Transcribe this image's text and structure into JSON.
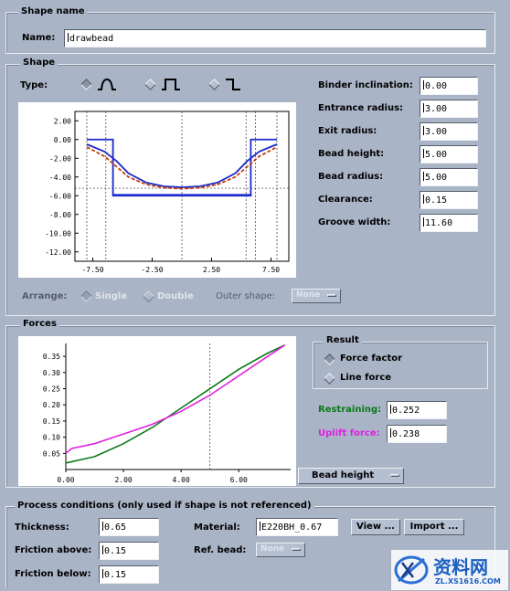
{
  "shape_name_group": {
    "title": "Shape name",
    "name_label": "Name:",
    "name_value": "drawbead"
  },
  "shape_group": {
    "title": "Shape",
    "type_label": "Type:",
    "type_options": [
      "round-bump-icon",
      "square-bump-icon",
      "step-icon"
    ],
    "selected_type": 0,
    "params": [
      {
        "label": "Binder inclination:",
        "value": "0.00"
      },
      {
        "label": "Entrance radius:",
        "value": "3.00"
      },
      {
        "label": "Exit radius:",
        "value": "3.00"
      },
      {
        "label": "Bead height:",
        "value": "5.00"
      },
      {
        "label": "Bead radius:",
        "value": "5.00"
      },
      {
        "label": "Clearance:",
        "value": "0.15"
      },
      {
        "label": "Groove width:",
        "value": "11.60"
      }
    ],
    "arrange_label": "Arrange:",
    "arrange_single": "Single",
    "arrange_double": "Double",
    "outer_shape_label": "Outer shape:",
    "outer_shape_value": "None"
  },
  "forces_group": {
    "title": "Forces",
    "result_title": "Result",
    "result_options": [
      "Force factor",
      "Line force"
    ],
    "selected_result": 0,
    "restraining_label": "Restraining:",
    "restraining_value": "0.252",
    "uplift_label": "Uplift force:",
    "uplift_value": "0.238",
    "xaxis_select": "Bead height",
    "colors": {
      "restraining": "#0a7a1a",
      "uplift": "#e020e0"
    }
  },
  "process_group": {
    "title": "Process conditions (only used if shape is not referenced)",
    "thickness_label": "Thickness:",
    "thickness_value": "0.65",
    "friction_above_label": "Friction above:",
    "friction_above_value": "0.15",
    "friction_below_label": "Friction below:",
    "friction_below_value": "0.15",
    "material_label": "Material:",
    "material_value": "E220BH_0.67",
    "view_button": "View ...",
    "import_button": "Import ...",
    "ref_bead_label": "Ref. bead:",
    "ref_bead_value": "None"
  },
  "watermark": {
    "text": "资料网",
    "url": "ZL.XS1616.COM"
  },
  "chart_data": [
    {
      "type": "line",
      "chart": "shape-profile",
      "xlim": [
        -9,
        9
      ],
      "ylim": [
        -13,
        3
      ],
      "xticks": [
        "-7.50",
        "-2.50",
        "2.50",
        "7.50"
      ],
      "yticks": [
        "2.00",
        "0.00",
        "-2.00",
        "-4.00",
        "-6.00",
        "-8.00",
        "-10.00",
        "-12.00"
      ],
      "series": [
        {
          "color": "#1a2acc",
          "x": [
            -8,
            -5.8,
            -5.8,
            5.8,
            5.8,
            8
          ],
          "y": [
            0,
            0,
            -6,
            -6,
            0,
            0
          ]
        },
        {
          "color": "#1a2acc",
          "x": [
            -8,
            -6.5,
            -5.5,
            -4.5,
            -3,
            -1.5,
            0,
            1.5,
            3,
            4.5,
            5.5,
            6.5,
            8
          ],
          "y": [
            -0.5,
            -1.3,
            -2.3,
            -3.6,
            -4.6,
            -5.0,
            -5.1,
            -5.0,
            -4.6,
            -3.6,
            -2.3,
            -1.3,
            -0.5
          ]
        },
        {
          "color": "#c04010",
          "dashed": true,
          "x": [
            -8,
            -6.5,
            -5.5,
            -4.5,
            -3,
            -1.5,
            0,
            1.5,
            3,
            4.5,
            5.5,
            6.5,
            8
          ],
          "y": [
            -0.8,
            -1.8,
            -2.9,
            -4.0,
            -4.8,
            -5.15,
            -5.25,
            -5.15,
            -4.8,
            -4.0,
            -2.9,
            -1.8,
            -0.8
          ]
        },
        {
          "color": "#1a2acc",
          "x": [
            -5.8,
            -5.8,
            5.8,
            5.8
          ],
          "y": [
            -6,
            -5.9,
            -5.9,
            -6
          ]
        }
      ]
    },
    {
      "type": "line",
      "chart": "forces",
      "xlim": [
        0,
        7.8
      ],
      "ylim": [
        0,
        0.39
      ],
      "xticks": [
        "0.00",
        "2.00",
        "4.00",
        "6.00"
      ],
      "yticks": [
        "0.35",
        "0.30",
        "0.25",
        "0.20",
        "0.15",
        "0.10",
        "0.05"
      ],
      "series": [
        {
          "name": "Restraining",
          "color": "#0a7a1a",
          "x": [
            0,
            0.5,
            1,
            2,
            3,
            4,
            5,
            6,
            7,
            7.6
          ],
          "y": [
            0.02,
            0.03,
            0.04,
            0.08,
            0.13,
            0.19,
            0.25,
            0.31,
            0.36,
            0.385
          ]
        },
        {
          "name": "Uplift force",
          "color": "#e020e0",
          "x": [
            0,
            0.2,
            1,
            2,
            3,
            4,
            5,
            6,
            7,
            7.6
          ],
          "y": [
            0.05,
            0.065,
            0.08,
            0.11,
            0.14,
            0.18,
            0.23,
            0.29,
            0.35,
            0.385
          ]
        }
      ]
    }
  ]
}
